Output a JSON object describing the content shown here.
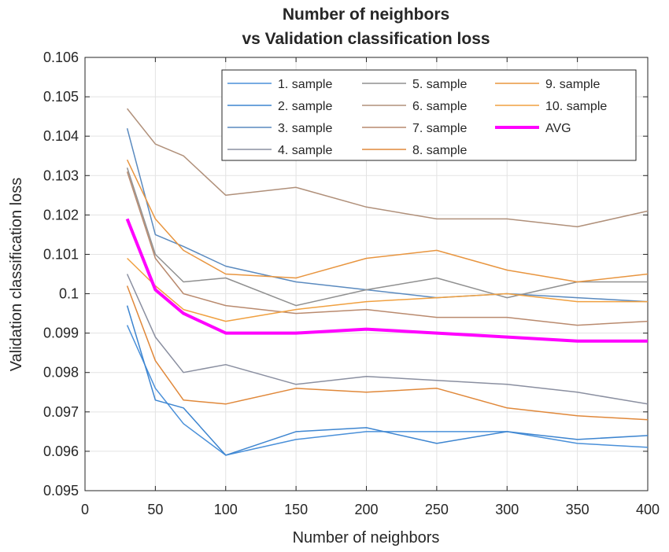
{
  "chart_data": {
    "type": "line",
    "title": [
      "Number of neighbors",
      "vs Validation classification loss"
    ],
    "xlabel": "Number of neighbors",
    "ylabel": "Validation classification loss",
    "xlim": [
      0,
      400
    ],
    "ylim": [
      0.095,
      0.106
    ],
    "xticks": [
      0,
      50,
      100,
      150,
      200,
      250,
      300,
      350,
      400
    ],
    "xtick_labels": [
      "0",
      "50",
      "100",
      "150",
      "200",
      "250",
      "300",
      "350",
      "400"
    ],
    "yticks": [
      0.095,
      0.096,
      0.097,
      0.098,
      0.099,
      0.1,
      0.101,
      0.102,
      0.103,
      0.104,
      0.105,
      0.106
    ],
    "ytick_labels": [
      "0.095",
      "0.096",
      "0.097",
      "0.098",
      "0.099",
      "0.1",
      "0.101",
      "0.102",
      "0.103",
      "0.104",
      "0.105",
      "0.106"
    ],
    "grid": true,
    "legend_position": "top-right",
    "x": [
      30,
      50,
      70,
      100,
      150,
      200,
      250,
      300,
      350,
      400
    ],
    "series": [
      {
        "name": "1. sample",
        "color": "#4a90d9",
        "values": [
          0.0992,
          0.0976,
          0.0967,
          0.0959,
          0.0963,
          0.0965,
          0.0965,
          0.0965,
          0.0962,
          0.0961
        ]
      },
      {
        "name": "2. sample",
        "color": "#3d85d0",
        "values": [
          0.0997,
          0.0973,
          0.0971,
          0.0959,
          0.0965,
          0.0966,
          0.0962,
          0.0965,
          0.0963,
          0.0964
        ]
      },
      {
        "name": "3. sample",
        "color": "#5a8abf",
        "values": [
          0.1042,
          0.1015,
          0.1012,
          0.1007,
          0.1003,
          0.1001,
          0.0999,
          0.1,
          0.0999,
          0.0998
        ]
      },
      {
        "name": "4. sample",
        "color": "#8a8fa0",
        "values": [
          0.1005,
          0.0989,
          0.098,
          0.0982,
          0.0977,
          0.0979,
          0.0978,
          0.0977,
          0.0975,
          0.0972
        ]
      },
      {
        "name": "5. sample",
        "color": "#909090",
        "values": [
          0.1032,
          0.101,
          0.1003,
          0.1004,
          0.0997,
          0.1001,
          0.1004,
          0.0999,
          0.1003,
          0.1003
        ]
      },
      {
        "name": "6. sample",
        "color": "#b0907a",
        "values": [
          0.1047,
          0.1038,
          0.1035,
          0.1025,
          0.1027,
          0.1022,
          0.1019,
          0.1019,
          0.1017,
          0.1021
        ]
      },
      {
        "name": "7. sample",
        "color": "#b98a6e",
        "values": [
          0.1031,
          0.1009,
          0.1,
          0.0997,
          0.0995,
          0.0996,
          0.0994,
          0.0994,
          0.0992,
          0.0993
        ]
      },
      {
        "name": "8. sample",
        "color": "#e0883a",
        "values": [
          0.1002,
          0.0983,
          0.0973,
          0.0972,
          0.0976,
          0.0975,
          0.0976,
          0.0971,
          0.0969,
          0.0968
        ]
      },
      {
        "name": "9. sample",
        "color": "#e8953f",
        "values": [
          0.1034,
          0.1019,
          0.1011,
          0.1005,
          0.1004,
          0.1009,
          0.1011,
          0.1006,
          0.1003,
          0.1005
        ]
      },
      {
        "name": "10. sample",
        "color": "#f0a040",
        "values": [
          0.1009,
          0.1002,
          0.0996,
          0.0993,
          0.0996,
          0.0998,
          0.0999,
          0.1,
          0.0998,
          0.0998
        ]
      },
      {
        "name": "AVG",
        "color": "#ff00ff",
        "width": 4,
        "values": [
          0.1019,
          0.1001,
          0.0995,
          0.099,
          0.099,
          0.0991,
          0.099,
          0.0989,
          0.0988,
          0.0988
        ]
      }
    ]
  }
}
